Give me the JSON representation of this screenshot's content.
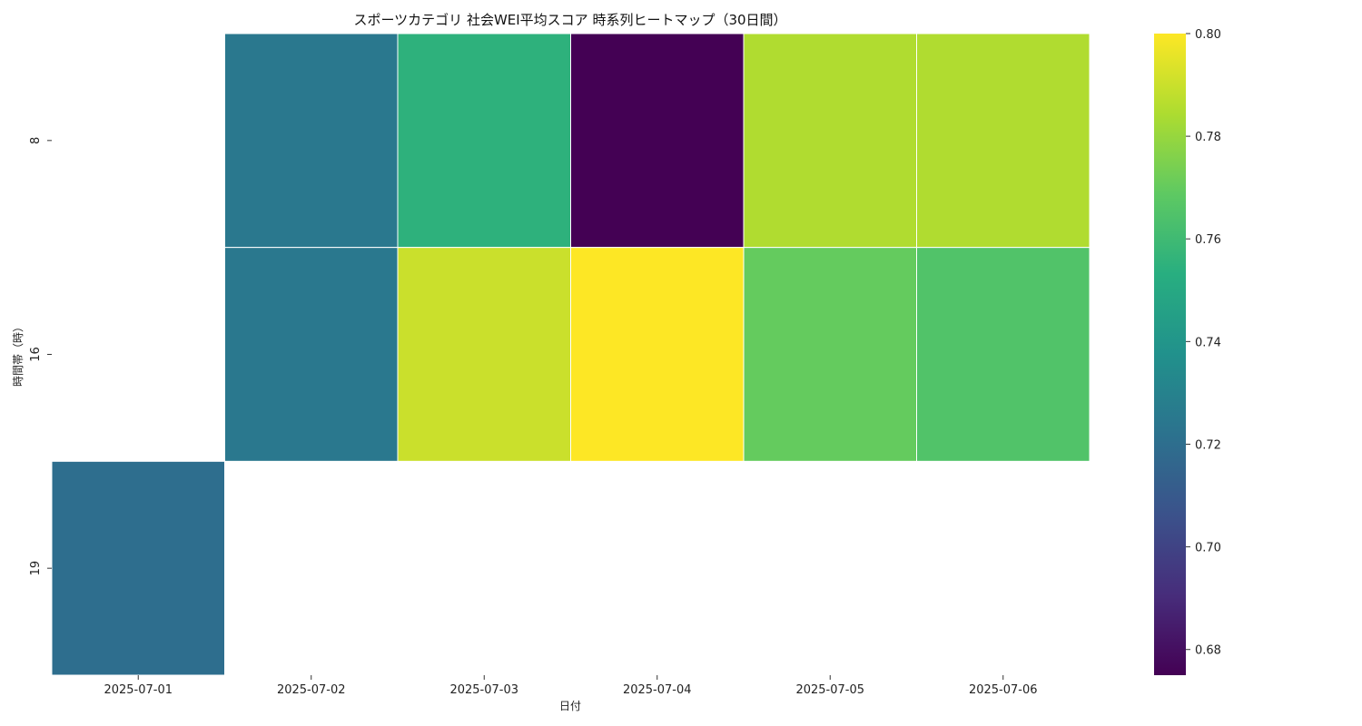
{
  "chart_data": {
    "type": "heatmap",
    "title": "スポーツカテゴリ 社会WEI平均スコア 時系列ヒートマップ（30日間）",
    "xlabel": "日付",
    "ylabel": "時間帯（時）",
    "x_categories": [
      "2025-07-01",
      "2025-07-02",
      "2025-07-03",
      "2025-07-04",
      "2025-07-05",
      "2025-07-06"
    ],
    "y_categories": [
      "8",
      "16",
      "19"
    ],
    "values": [
      [
        null,
        0.725,
        0.755,
        0.675,
        0.785,
        0.785
      ],
      [
        null,
        0.725,
        0.79,
        0.8,
        0.77,
        0.765
      ],
      [
        0.72,
        null,
        null,
        null,
        null,
        null
      ]
    ],
    "colormap": "viridis",
    "vmin": 0.675,
    "vmax": 0.8,
    "colorbar_ticks": [
      "0.68",
      "0.70",
      "0.72",
      "0.74",
      "0.76",
      "0.78",
      "0.80"
    ],
    "grid": false,
    "cell_border_color": "#ffffff"
  }
}
